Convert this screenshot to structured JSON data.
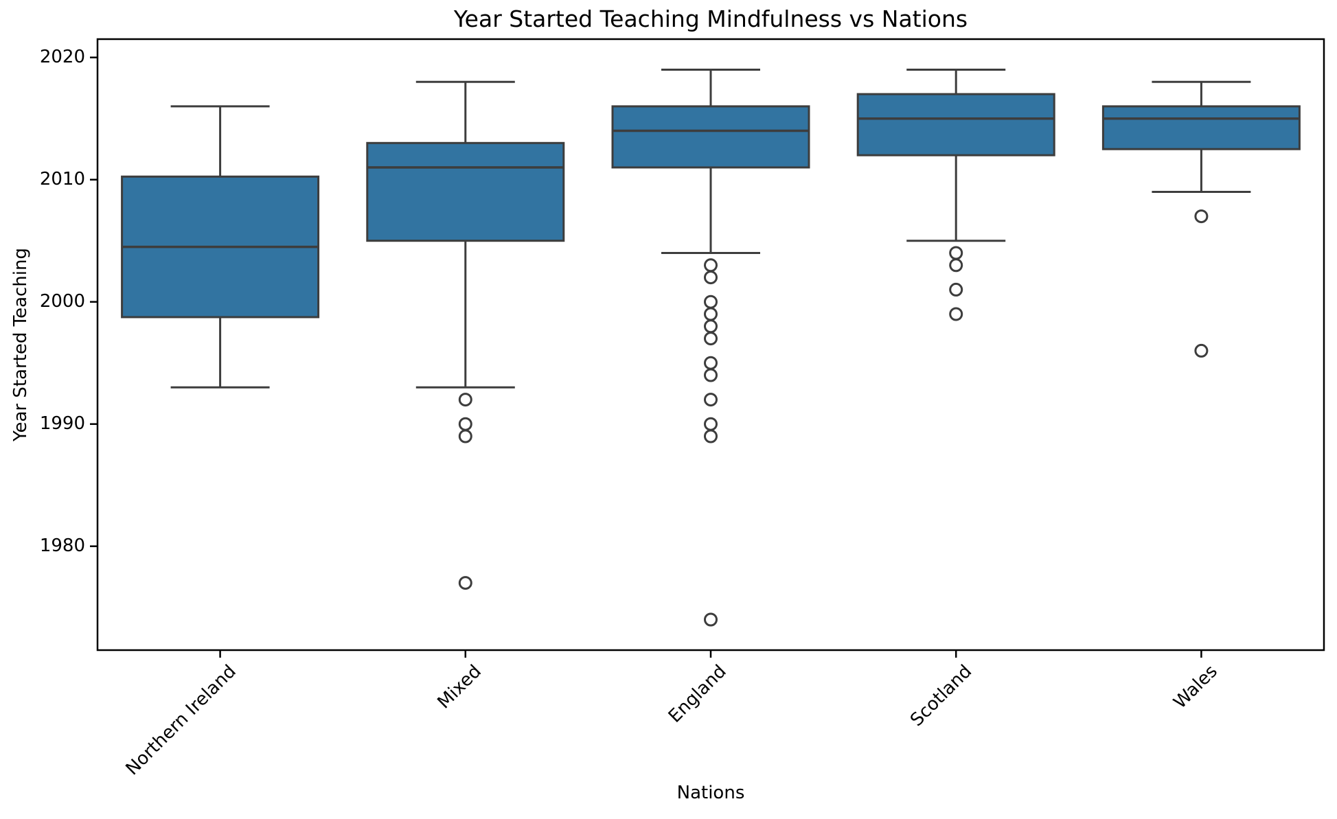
{
  "chart_data": {
    "type": "box",
    "title": "Year Started Teaching Mindfulness vs Nations",
    "xlabel": "Nations",
    "ylabel": "Year Started Teaching",
    "categories": [
      "Northern Ireland",
      "Mixed",
      "England",
      "Scotland",
      "Wales"
    ],
    "ylim": [
      1971.5,
      2021.5
    ],
    "yticks": [
      1980,
      1990,
      2000,
      2010,
      2020
    ],
    "ytick_labels": [
      "1980",
      "1990",
      "2000",
      "2010",
      "2020"
    ],
    "grid": false,
    "legend": "none",
    "box_fill_color": "#3274a1",
    "box_line_color": "#3d3d3d",
    "axis_color": "#000000",
    "series": [
      {
        "category": "Northern Ireland",
        "whisker_low": 1993,
        "q1": 1998.75,
        "median": 2004.5,
        "q3": 2010.25,
        "whisker_high": 2016,
        "outliers": []
      },
      {
        "category": "Mixed",
        "whisker_low": 1993,
        "q1": 2005,
        "median": 2011,
        "q3": 2013,
        "whisker_high": 2018,
        "outliers": [
          1992,
          1990,
          1989,
          1977
        ]
      },
      {
        "category": "England",
        "whisker_low": 2004,
        "q1": 2011,
        "median": 2014,
        "q3": 2016,
        "whisker_high": 2019,
        "outliers": [
          2003,
          2002,
          2000,
          1999,
          1998,
          1997,
          1995,
          1994,
          1992,
          1990,
          1989,
          1974
        ]
      },
      {
        "category": "Scotland",
        "whisker_low": 2005,
        "q1": 2012,
        "median": 2015,
        "q3": 2017,
        "whisker_high": 2019,
        "outliers": [
          2004,
          2003,
          2001,
          1999
        ]
      },
      {
        "category": "Wales",
        "whisker_low": 2009,
        "q1": 2012.5,
        "median": 2015,
        "q3": 2016,
        "whisker_high": 2018,
        "outliers": [
          2007,
          1996
        ]
      }
    ]
  }
}
